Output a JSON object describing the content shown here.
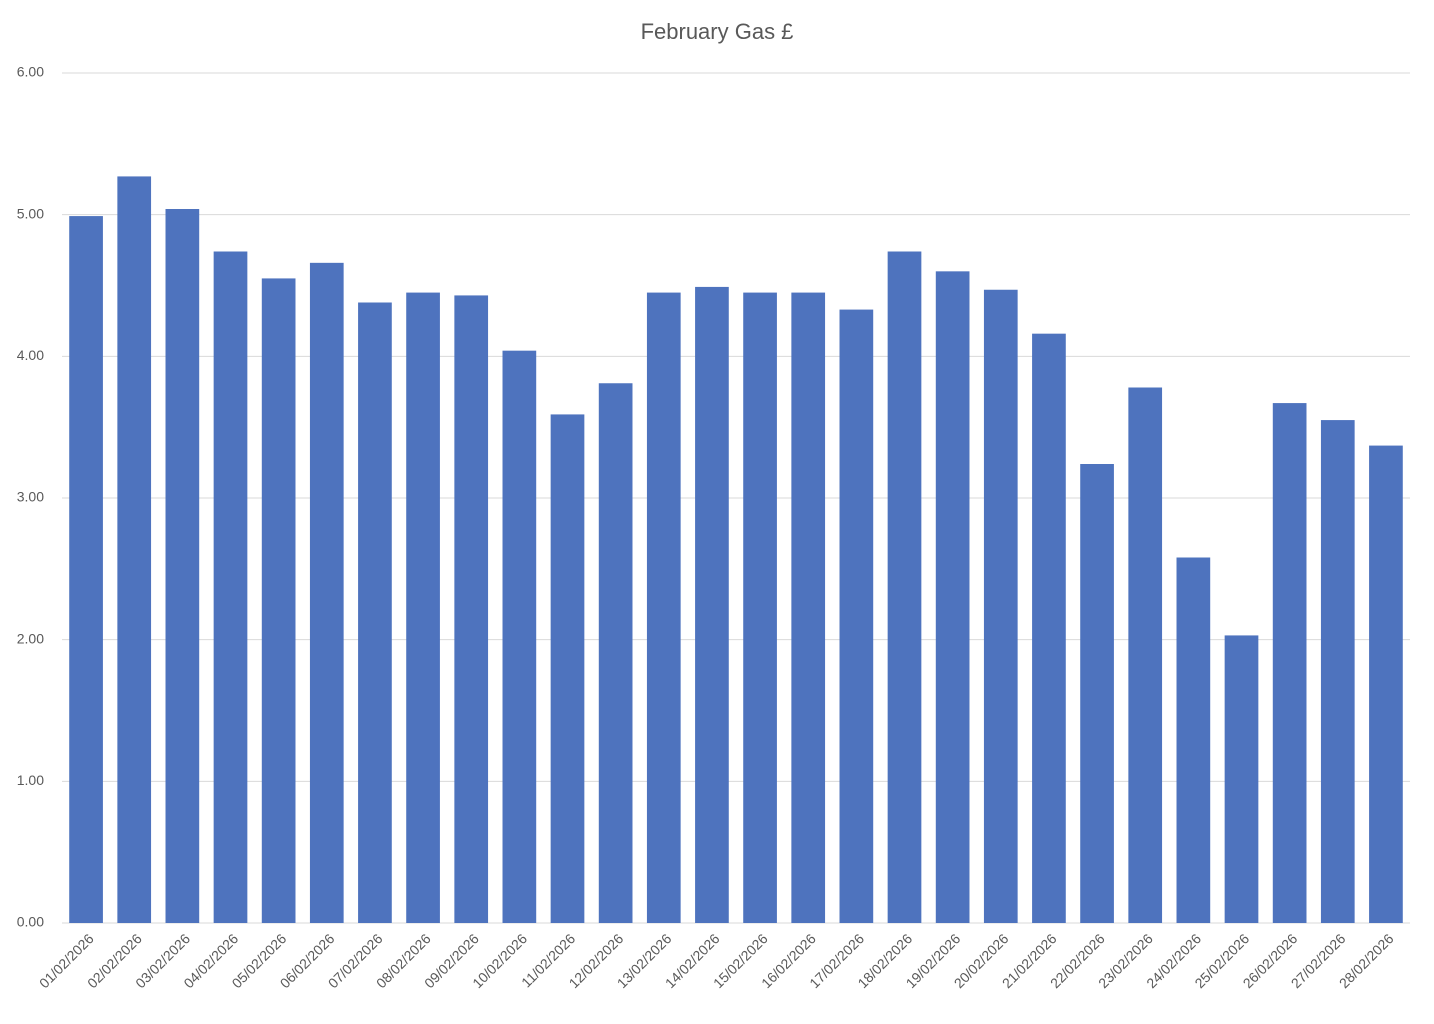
{
  "chart_data": {
    "type": "bar",
    "title": "February Gas £",
    "categories": [
      "01/02/2026",
      "02/02/2026",
      "03/02/2026",
      "04/02/2026",
      "05/02/2026",
      "06/02/2026",
      "07/02/2026",
      "08/02/2026",
      "09/02/2026",
      "10/02/2026",
      "11/02/2026",
      "12/02/2026",
      "13/02/2026",
      "14/02/2026",
      "15/02/2026",
      "16/02/2026",
      "17/02/2026",
      "18/02/2026",
      "19/02/2026",
      "20/02/2026",
      "21/02/2026",
      "22/02/2026",
      "23/02/2026",
      "24/02/2026",
      "25/02/2026",
      "26/02/2026",
      "27/02/2026",
      "28/02/2026"
    ],
    "values": [
      4.99,
      5.27,
      5.04,
      4.74,
      4.55,
      4.66,
      4.38,
      4.45,
      4.43,
      4.04,
      3.59,
      3.81,
      4.45,
      4.49,
      4.45,
      4.45,
      4.33,
      4.74,
      4.6,
      4.47,
      4.16,
      3.24,
      3.78,
      2.58,
      2.03,
      3.67,
      3.55,
      3.37
    ],
    "color": "#4e73be",
    "ylim": [
      0,
      6
    ],
    "yticks": [
      {
        "value": 0,
        "label": "0.00"
      },
      {
        "value": 1,
        "label": "1.00"
      },
      {
        "value": 2,
        "label": "2.00"
      },
      {
        "value": 3,
        "label": "3.00"
      },
      {
        "value": 4,
        "label": "4.00"
      },
      {
        "value": 5,
        "label": "5.00"
      },
      {
        "value": 6,
        "label": "6.00"
      }
    ],
    "grid": true
  }
}
